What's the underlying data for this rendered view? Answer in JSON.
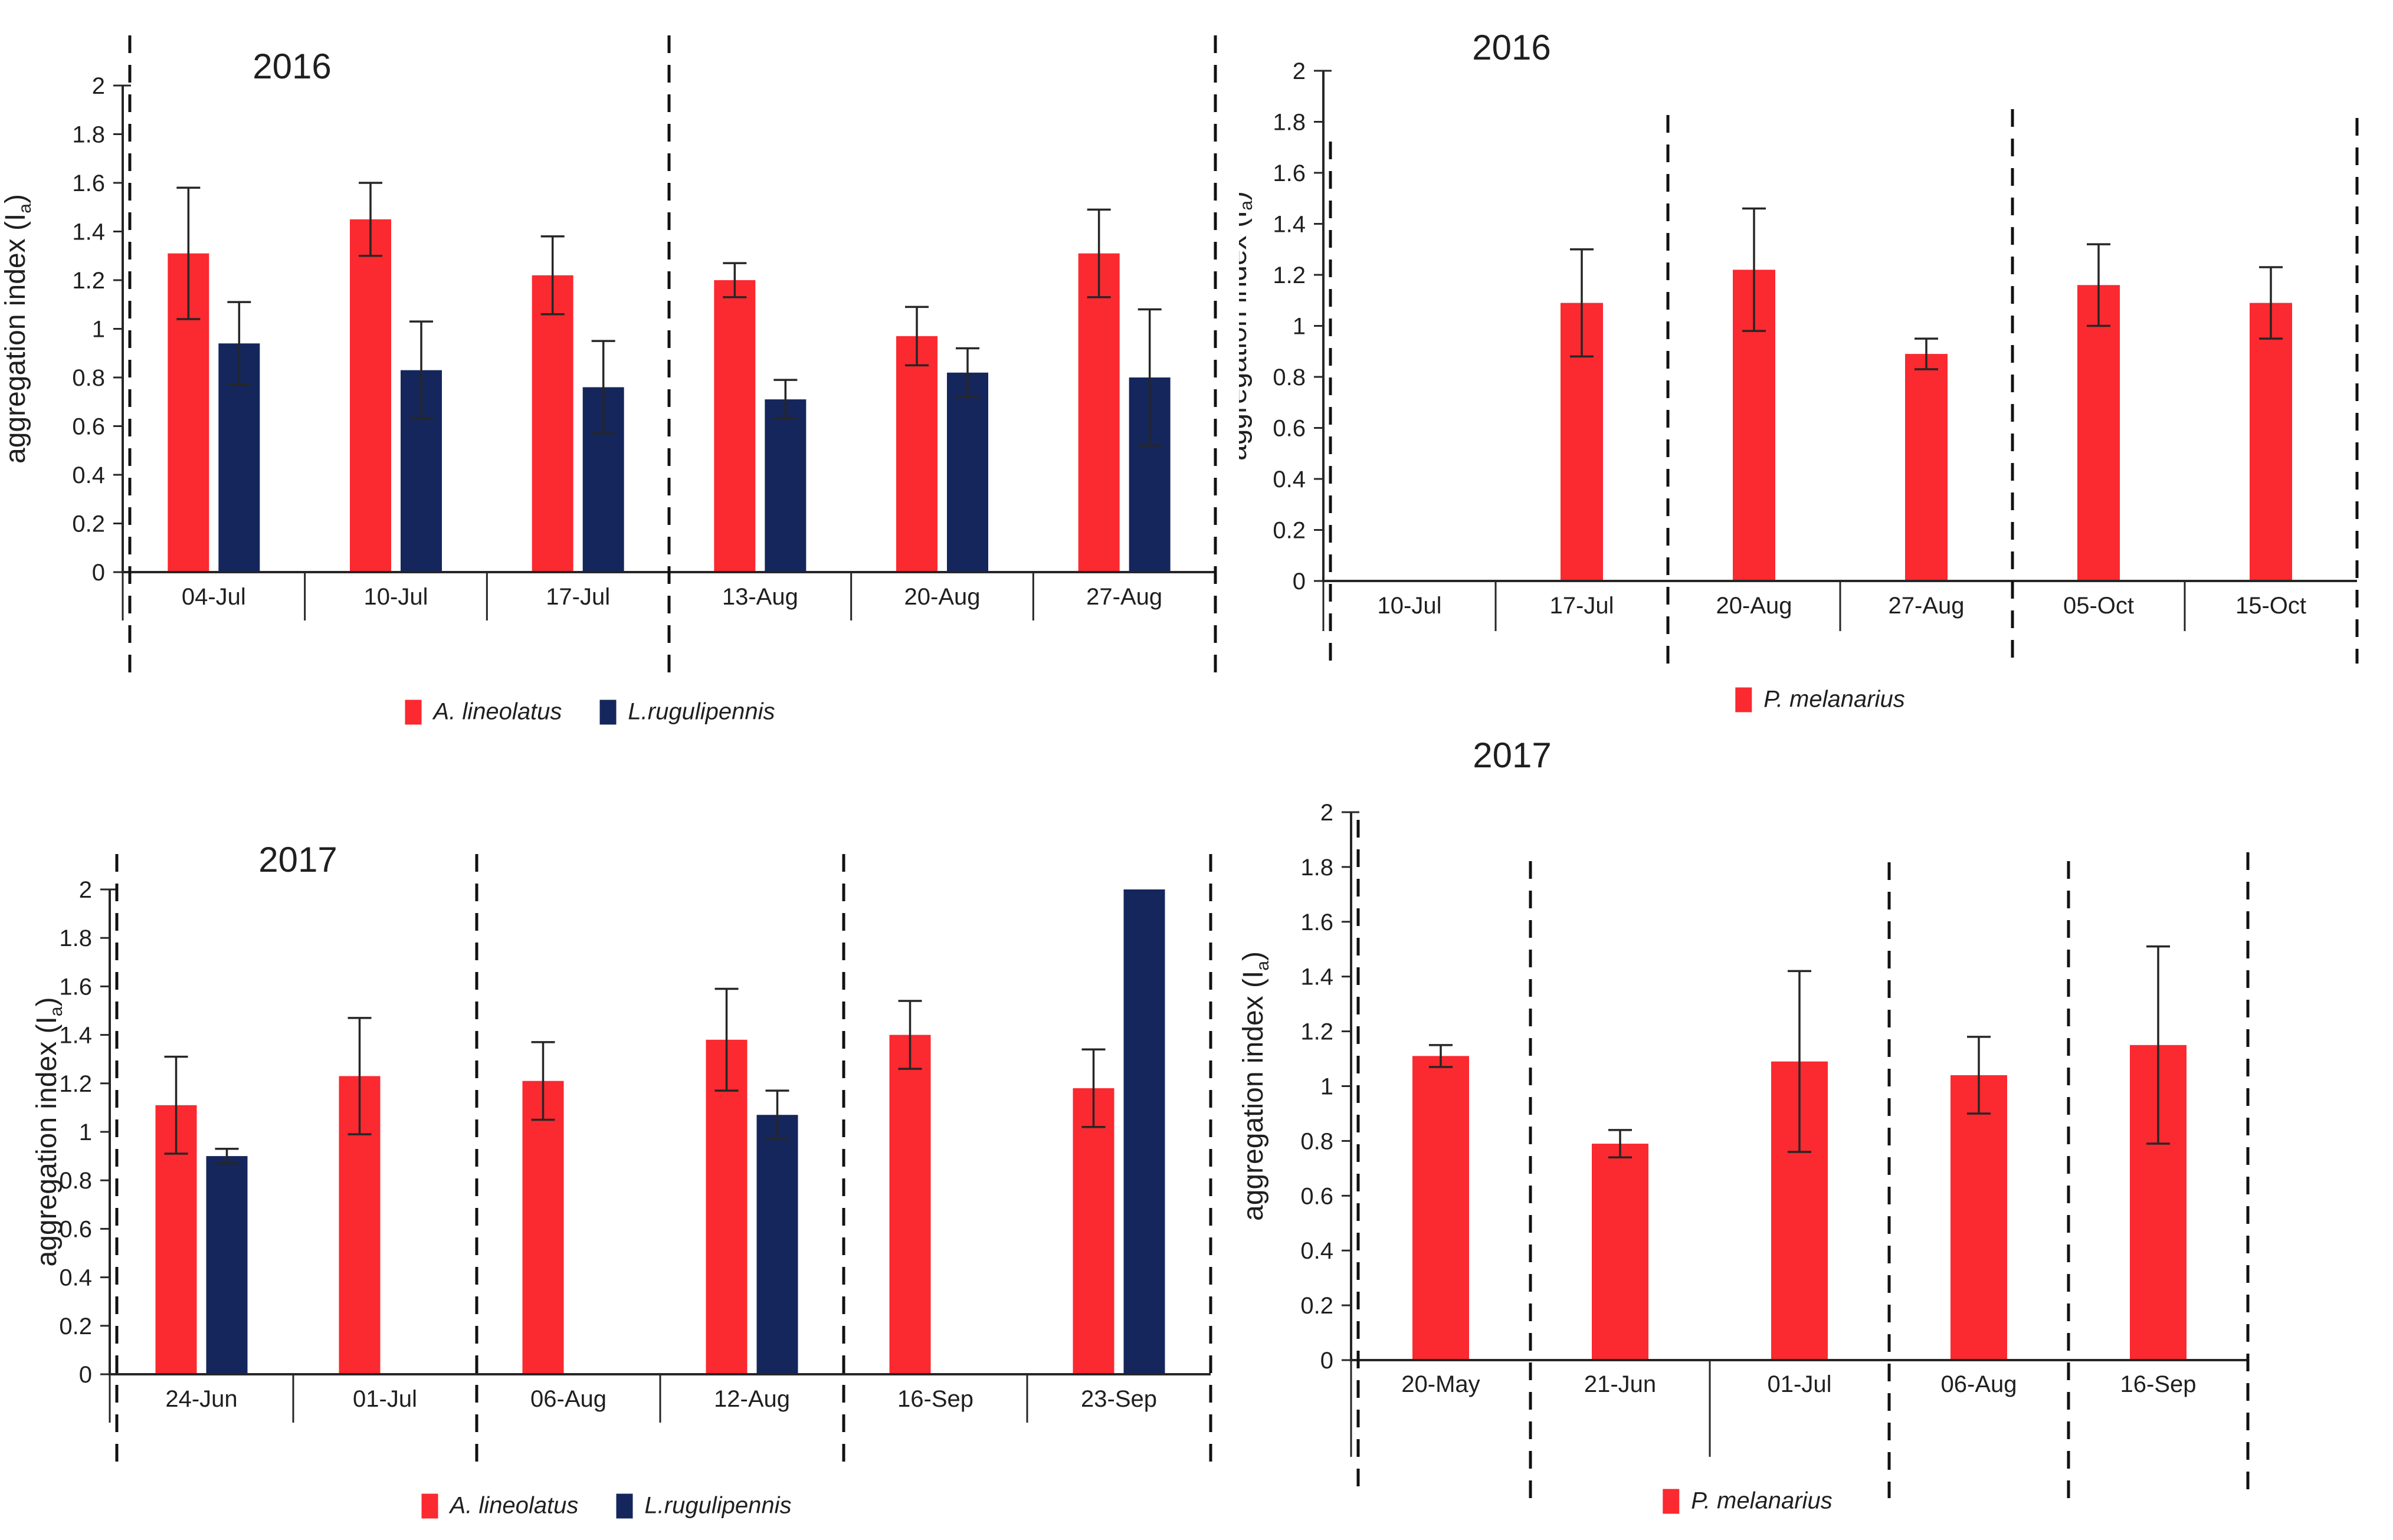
{
  "colors": {
    "red": "#fb2930",
    "navy": "#14265c",
    "axis": "#262626",
    "text": "#1f1f1f"
  },
  "ylabel": {
    "pre": "aggregation index (I",
    "sub": "a",
    "post": ")"
  },
  "yaxis": {
    "min": 0,
    "max": 2,
    "tick_values": [
      0,
      0.2,
      0.4,
      0.6,
      0.8,
      1,
      1.2,
      1.4,
      1.6,
      1.8,
      2
    ],
    "tick_labels": [
      "0",
      "0.2",
      "0.4",
      "0.6",
      "0.8",
      "1",
      "1.2",
      "1.4",
      "1.6",
      "1.8",
      "2"
    ]
  },
  "chart_data": [
    {
      "id": "left-2016",
      "type": "bar",
      "title": "2016",
      "xlabel": "",
      "ylabel": "aggregation index (Ia)",
      "ylim": [
        0,
        2
      ],
      "grid": false,
      "legend_position": "bottom",
      "categories": [
        "04-Jul",
        "10-Jul",
        "17-Jul",
        "13-Aug",
        "20-Aug",
        "27-Aug"
      ],
      "series": [
        {
          "name": "A. lineolatus",
          "color_key": "red",
          "values": [
            1.31,
            1.45,
            1.22,
            1.2,
            0.97,
            1.31
          ],
          "errors": [
            0.27,
            0.15,
            0.16,
            0.07,
            0.12,
            0.18
          ]
        },
        {
          "name": "L.rugulipennis",
          "color_key": "navy",
          "values": [
            0.94,
            0.83,
            0.76,
            0.71,
            0.82,
            0.8
          ],
          "errors": [
            0.17,
            0.2,
            0.19,
            0.08,
            0.1,
            0.28
          ]
        }
      ],
      "separator_boundaries": [
        0,
        3,
        6
      ],
      "legend": [
        "A. lineolatus",
        "L.rugulipennis"
      ]
    },
    {
      "id": "right-2016",
      "type": "bar",
      "title": "2016",
      "xlabel": "",
      "ylabel": "aggregation index (Ia)",
      "ylim": [
        0,
        2
      ],
      "grid": false,
      "legend_position": "bottom",
      "categories": [
        "10-Jul",
        "17-Jul",
        "20-Aug",
        "27-Aug",
        "05-Oct",
        "15-Oct"
      ],
      "series": [
        {
          "name": "P. melanarius",
          "color_key": "red",
          "values": [
            null,
            1.09,
            1.22,
            0.89,
            1.16,
            1.09
          ],
          "errors": [
            null,
            0.21,
            0.24,
            0.06,
            0.16,
            0.14
          ]
        }
      ],
      "separator_boundaries": [
        0,
        2,
        4,
        6
      ],
      "legend": [
        "P. melanarius"
      ]
    },
    {
      "id": "left-2017",
      "type": "bar",
      "title": "2017",
      "xlabel": "",
      "ylabel": "aggregation index (Ia)",
      "ylim": [
        0,
        2
      ],
      "grid": false,
      "legend_position": "bottom",
      "categories": [
        "24-Jun",
        "01-Jul",
        "06-Aug",
        "12-Aug",
        "16-Sep",
        "23-Sep"
      ],
      "series": [
        {
          "name": "A. lineolatus",
          "color_key": "red",
          "values": [
            1.11,
            1.23,
            1.21,
            1.38,
            1.4,
            1.18
          ],
          "errors": [
            0.2,
            0.24,
            0.16,
            0.21,
            0.14,
            0.16
          ]
        },
        {
          "name": "L.rugulipennis",
          "color_key": "navy",
          "values": [
            0.9,
            null,
            null,
            1.07,
            null,
            2.0
          ],
          "errors": [
            0.03,
            null,
            null,
            0.1,
            null,
            null
          ]
        }
      ],
      "separator_boundaries": [
        0,
        2,
        4,
        6
      ],
      "legend": [
        "A. lineolatus",
        "L.rugulipennis"
      ]
    },
    {
      "id": "right-2017",
      "type": "bar",
      "title": "2017",
      "xlabel": "",
      "ylabel": "aggregation index (Ia)",
      "ylim": [
        0,
        2
      ],
      "grid": false,
      "legend_position": "bottom",
      "categories": [
        "20-May",
        "21-Jun",
        "01-Jul",
        "06-Aug",
        "16-Sep"
      ],
      "series": [
        {
          "name": "P. melanarius",
          "color_key": "red",
          "values": [
            1.11,
            0.79,
            1.09,
            1.04,
            1.15
          ],
          "errors": [
            0.04,
            0.05,
            0.33,
            0.14,
            0.36
          ]
        }
      ],
      "separator_boundaries": [
        0,
        1,
        3,
        4,
        5
      ],
      "legend": [
        "P. melanarius"
      ]
    }
  ]
}
